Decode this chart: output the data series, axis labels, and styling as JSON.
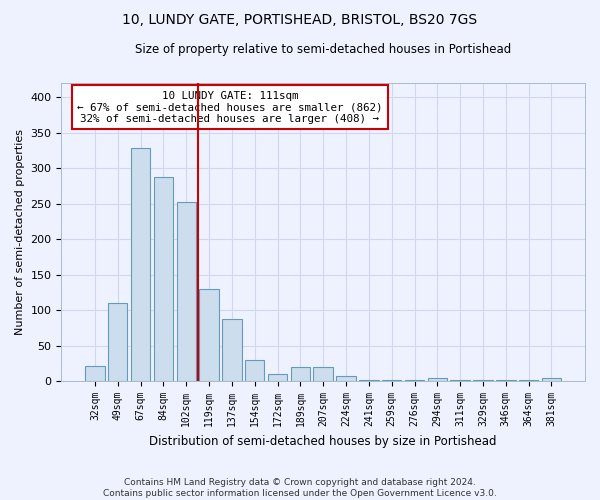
{
  "title": "10, LUNDY GATE, PORTISHEAD, BRISTOL, BS20 7GS",
  "subtitle": "Size of property relative to semi-detached houses in Portishead",
  "xlabel": "Distribution of semi-detached houses by size in Portishead",
  "ylabel": "Number of semi-detached properties",
  "footer_line1": "Contains HM Land Registry data © Crown copyright and database right 2024.",
  "footer_line2": "Contains public sector information licensed under the Open Government Licence v3.0.",
  "categories": [
    "32sqm",
    "49sqm",
    "67sqm",
    "84sqm",
    "102sqm",
    "119sqm",
    "137sqm",
    "154sqm",
    "172sqm",
    "189sqm",
    "207sqm",
    "224sqm",
    "241sqm",
    "259sqm",
    "276sqm",
    "294sqm",
    "311sqm",
    "329sqm",
    "346sqm",
    "364sqm",
    "381sqm"
  ],
  "values": [
    22,
    110,
    328,
    287,
    253,
    130,
    88,
    30,
    10,
    20,
    20,
    7,
    2,
    2,
    2,
    4,
    2,
    1,
    2,
    2,
    4
  ],
  "bar_color": "#ccdded",
  "bar_edge_color": "#6699bb",
  "grid_color": "#d0d8ee",
  "vline_color": "#cc0000",
  "annotation_text": "10 LUNDY GATE: 111sqm\n← 67% of semi-detached houses are smaller (862)\n32% of semi-detached houses are larger (408) →",
  "annotation_box_color": "white",
  "annotation_box_edge": "#cc0000",
  "ylim": [
    0,
    420
  ],
  "yticks": [
    0,
    50,
    100,
    150,
    200,
    250,
    300,
    350,
    400
  ],
  "background_color": "#eef2ff",
  "title_fontsize": 10,
  "subtitle_fontsize": 8.5,
  "vline_bar_index": 5
}
